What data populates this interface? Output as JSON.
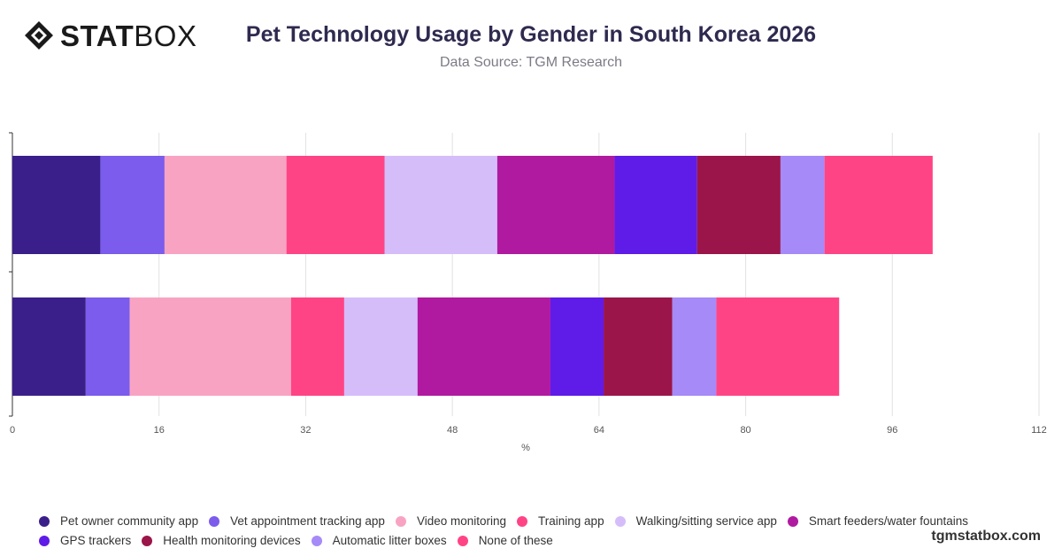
{
  "brand": {
    "logo_bold": "STAT",
    "logo_light": "BOX",
    "site": "tgmstatbox.com"
  },
  "chart_data": {
    "type": "bar",
    "orientation": "horizontal",
    "stacked": true,
    "title": "Pet Technology Usage by Gender in South Korea 2026",
    "subtitle": "Data Source: TGM Research",
    "xlabel": "%",
    "ylabel": "",
    "xlim": [
      0,
      112
    ],
    "xticks": [
      0,
      16,
      32,
      48,
      64,
      80,
      96,
      112
    ],
    "grid": true,
    "legend_position": "bottom",
    "categories": [
      "",
      ""
    ],
    "series": [
      {
        "name": "Pet owner community app",
        "color": "#3a1f8a",
        "values": [
          9.6,
          8.0
        ]
      },
      {
        "name": "Vet appointment tracking app",
        "color": "#7b5cec",
        "values": [
          7.0,
          4.8
        ]
      },
      {
        "name": "Video monitoring",
        "color": "#f9a3c3",
        "values": [
          13.3,
          17.6
        ]
      },
      {
        "name": "Training app",
        "color": "#ff4485",
        "values": [
          10.7,
          5.8
        ]
      },
      {
        "name": "Walking/sitting service app",
        "color": "#d5bdfa",
        "values": [
          12.3,
          8.0
        ]
      },
      {
        "name": "Smart feeders/water fountains",
        "color": "#b01aa0",
        "values": [
          12.8,
          14.5
        ]
      },
      {
        "name": "GPS trackers",
        "color": "#5f1be8",
        "values": [
          9.0,
          5.8
        ]
      },
      {
        "name": "Health monitoring devices",
        "color": "#9b154a",
        "values": [
          9.1,
          7.5
        ]
      },
      {
        "name": "Automatic litter boxes",
        "color": "#a68af8",
        "values": [
          4.8,
          4.8
        ]
      },
      {
        "name": "None of these",
        "color": "#ff4485",
        "values": [
          11.8,
          13.4
        ]
      }
    ]
  }
}
